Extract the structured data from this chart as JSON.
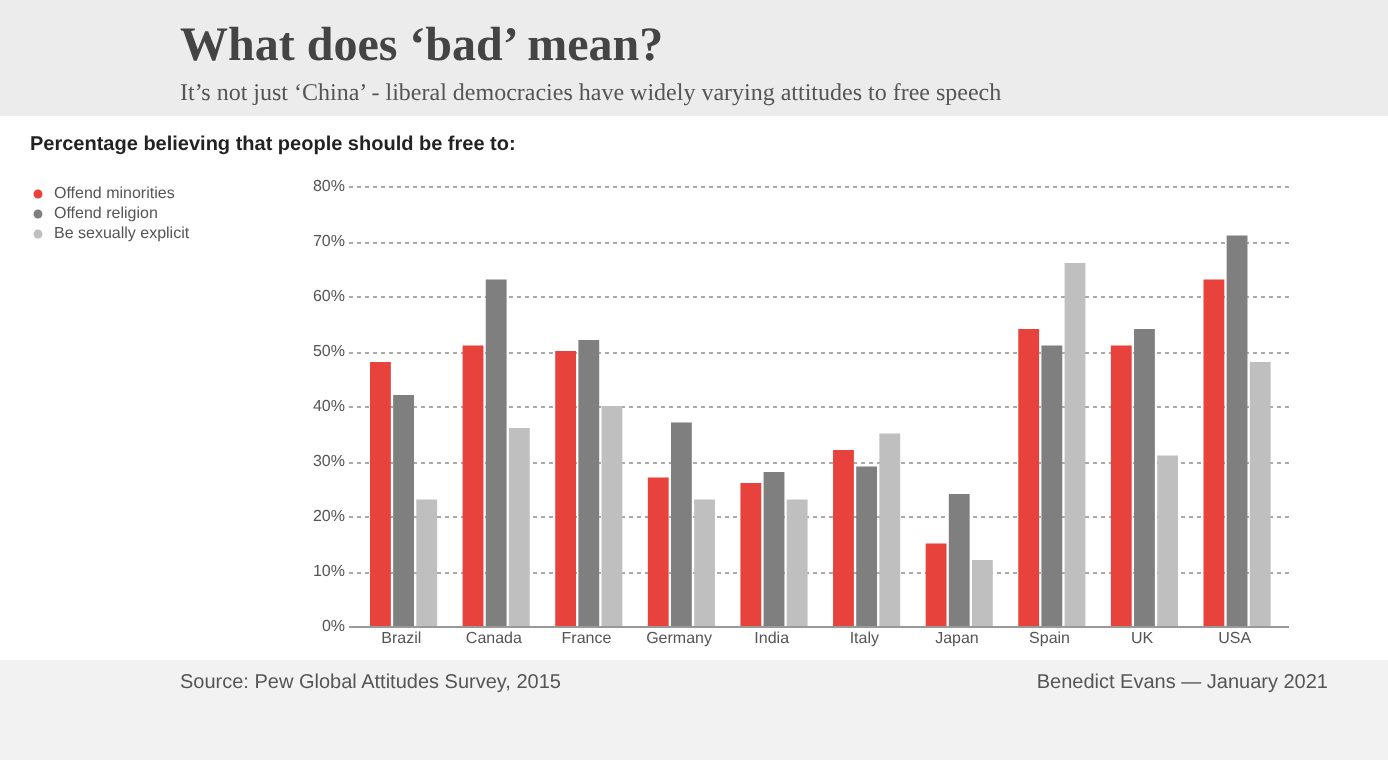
{
  "chart_data": {
    "type": "bar",
    "title": "What does ‘bad’ mean?",
    "subtitle": "It’s not just ‘China’ - liberal democracies have widely varying attitudes to free speech",
    "annotations": [
      "Percentage believing that people should be free to:",
      "Source: Pew Global Attitudes Survey, 2015",
      "Benedict Evans — January 2021"
    ],
    "categories": [
      "Brazil",
      "Canada",
      "France",
      "Germany",
      "India",
      "Italy",
      "Japan",
      "Spain",
      "UK",
      "USA"
    ],
    "series": [
      {
        "name": "Offend minorities",
        "color": "#e8423c",
        "values": [
          48,
          51,
          50,
          27,
          26,
          32,
          15,
          54,
          51,
          63
        ]
      },
      {
        "name": "Offend religion",
        "color": "#7f7f7f",
        "values": [
          42,
          63,
          52,
          37,
          28,
          29,
          24,
          51,
          54,
          71
        ]
      },
      {
        "name": "Be sexually explicit",
        "color": "#bfbfbf",
        "values": [
          23,
          36,
          40,
          23,
          23,
          35,
          12,
          66,
          31,
          48
        ]
      }
    ],
    "ylim": [
      0,
      80
    ],
    "yticks": [
      {
        "value": 0,
        "label": "0%"
      },
      {
        "value": 10,
        "label": "10%"
      },
      {
        "value": 20,
        "label": "20%"
      },
      {
        "value": 30,
        "label": "30%"
      },
      {
        "value": 40,
        "label": "40%"
      },
      {
        "value": 50,
        "label": "50%"
      },
      {
        "value": 60,
        "label": "60%"
      },
      {
        "value": 70,
        "label": "70%"
      },
      {
        "value": 80,
        "label": "80%"
      }
    ],
    "grid": "y",
    "legend": "top left"
  }
}
